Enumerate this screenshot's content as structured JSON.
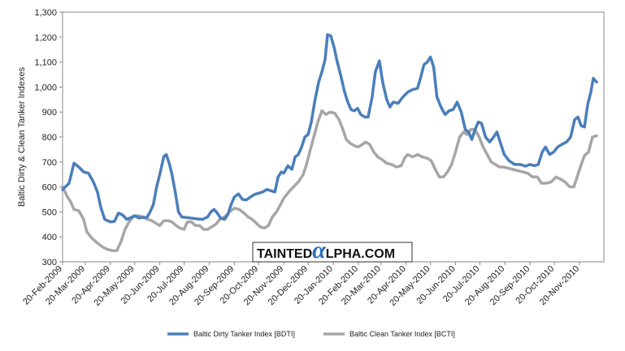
{
  "chart_data": {
    "type": "line",
    "title": "",
    "xlabel": "",
    "ylabel": "Baltic Dirty & Clean Tanker Indexes",
    "ylim": [
      300,
      1300
    ],
    "yticks": [
      300,
      400,
      500,
      600,
      700,
      800,
      900,
      1000,
      1100,
      1200,
      1300
    ],
    "ytick_labels": [
      "300",
      "400",
      "500",
      "600",
      "700",
      "800",
      "900",
      "1,000",
      "1,100",
      "1,200",
      "1,300"
    ],
    "x_start": "2009-02-20",
    "x_end": "2010-12-20",
    "xticks": [
      "2009-02-20",
      "2009-03-20",
      "2009-04-20",
      "2009-05-20",
      "2009-06-20",
      "2009-07-20",
      "2009-08-20",
      "2009-09-20",
      "2009-10-20",
      "2009-11-20",
      "2009-12-20",
      "2010-01-20",
      "2010-02-20",
      "2010-03-20",
      "2010-04-20",
      "2010-05-20",
      "2010-06-20",
      "2010-07-20",
      "2010-08-20",
      "2010-09-20",
      "2010-10-20",
      "2010-11-20"
    ],
    "xtick_labels": [
      "20-Feb-2009",
      "20-Mar-2009",
      "20-Apr-2009",
      "20-May-2009",
      "20-Jun-2009",
      "20-Jul-2009",
      "20-Aug-2009",
      "20-Sep-2009",
      "20-Oct-2009",
      "20-Nov-2009",
      "20-Dec-2009",
      "20-Jan-2010",
      "20-Feb-2010",
      "20-Mar-2010",
      "20-Apr-2010",
      "20-May-2010",
      "20-Jun-2010",
      "20-Jul-2010",
      "20-Aug-2010",
      "20-Sep-2010",
      "20-Oct-2010",
      "20-Nov-2010"
    ],
    "grid": false,
    "legend_position": "bottom",
    "series": [
      {
        "name": "Baltic Dirty Tanker Index [BDTI]",
        "color": "#4a7ebb",
        "points": [
          [
            "2009-02-20",
            590
          ],
          [
            "2009-02-28",
            615
          ],
          [
            "2009-03-06",
            695
          ],
          [
            "2009-03-12",
            680
          ],
          [
            "2009-03-18",
            660
          ],
          [
            "2009-03-24",
            655
          ],
          [
            "2009-03-30",
            620
          ],
          [
            "2009-04-04",
            580
          ],
          [
            "2009-04-08",
            520
          ],
          [
            "2009-04-13",
            470
          ],
          [
            "2009-04-20",
            460
          ],
          [
            "2009-04-25",
            462
          ],
          [
            "2009-04-30",
            495
          ],
          [
            "2009-05-05",
            488
          ],
          [
            "2009-05-10",
            470
          ],
          [
            "2009-05-16",
            478
          ],
          [
            "2009-05-20",
            485
          ],
          [
            "2009-05-25",
            476
          ],
          [
            "2009-05-30",
            478
          ],
          [
            "2009-06-04",
            478
          ],
          [
            "2009-06-08",
            500
          ],
          [
            "2009-06-12",
            530
          ],
          [
            "2009-06-16",
            600
          ],
          [
            "2009-06-20",
            650
          ],
          [
            "2009-06-25",
            722
          ],
          [
            "2009-06-28",
            730
          ],
          [
            "2009-07-02",
            690
          ],
          [
            "2009-07-05",
            650
          ],
          [
            "2009-07-09",
            580
          ],
          [
            "2009-07-13",
            500
          ],
          [
            "2009-07-17",
            480
          ],
          [
            "2009-07-22",
            478
          ],
          [
            "2009-07-29",
            475
          ],
          [
            "2009-08-05",
            472
          ],
          [
            "2009-08-12",
            470
          ],
          [
            "2009-08-18",
            480
          ],
          [
            "2009-08-22",
            500
          ],
          [
            "2009-08-26",
            510
          ],
          [
            "2009-08-30",
            495
          ],
          [
            "2009-09-03",
            475
          ],
          [
            "2009-09-08",
            470
          ],
          [
            "2009-09-12",
            490
          ],
          [
            "2009-09-16",
            530
          ],
          [
            "2009-09-20",
            560
          ],
          [
            "2009-09-25",
            572
          ],
          [
            "2009-09-30",
            550
          ],
          [
            "2009-10-05",
            548
          ],
          [
            "2009-10-10",
            560
          ],
          [
            "2009-10-15",
            570
          ],
          [
            "2009-10-20",
            575
          ],
          [
            "2009-10-25",
            580
          ],
          [
            "2009-10-30",
            590
          ],
          [
            "2009-11-04",
            585
          ],
          [
            "2009-11-09",
            580
          ],
          [
            "2009-11-13",
            640
          ],
          [
            "2009-11-17",
            660
          ],
          [
            "2009-11-20",
            655
          ],
          [
            "2009-11-25",
            685
          ],
          [
            "2009-11-30",
            670
          ],
          [
            "2009-12-04",
            720
          ],
          [
            "2009-12-08",
            730
          ],
          [
            "2009-12-12",
            760
          ],
          [
            "2009-12-16",
            800
          ],
          [
            "2009-12-20",
            810
          ],
          [
            "2009-12-24",
            860
          ],
          [
            "2009-12-28",
            940
          ],
          [
            "2010-01-02",
            1020
          ],
          [
            "2010-01-06",
            1060
          ],
          [
            "2010-01-10",
            1110
          ],
          [
            "2010-01-13",
            1210
          ],
          [
            "2010-01-17",
            1205
          ],
          [
            "2010-01-21",
            1160
          ],
          [
            "2010-01-25",
            1100
          ],
          [
            "2010-01-29",
            1050
          ],
          [
            "2010-02-03",
            980
          ],
          [
            "2010-02-07",
            940
          ],
          [
            "2010-02-11",
            910
          ],
          [
            "2010-02-15",
            905
          ],
          [
            "2010-02-19",
            915
          ],
          [
            "2010-02-23",
            890
          ],
          [
            "2010-02-28",
            880
          ],
          [
            "2010-03-04",
            880
          ],
          [
            "2010-03-09",
            960
          ],
          [
            "2010-03-13",
            1060
          ],
          [
            "2010-03-18",
            1105
          ],
          [
            "2010-03-22",
            1020
          ],
          [
            "2010-03-27",
            950
          ],
          [
            "2010-03-31",
            920
          ],
          [
            "2010-04-04",
            940
          ],
          [
            "2010-04-10",
            935
          ],
          [
            "2010-04-16",
            960
          ],
          [
            "2010-04-22",
            980
          ],
          [
            "2010-04-28",
            990
          ],
          [
            "2010-05-04",
            995
          ],
          [
            "2010-05-08",
            1040
          ],
          [
            "2010-05-12",
            1090
          ],
          [
            "2010-05-16",
            1100
          ],
          [
            "2010-05-20",
            1120
          ],
          [
            "2010-05-24",
            1080
          ],
          [
            "2010-05-28",
            960
          ],
          [
            "2010-06-02",
            920
          ],
          [
            "2010-06-07",
            890
          ],
          [
            "2010-06-12",
            905
          ],
          [
            "2010-06-17",
            910
          ],
          [
            "2010-06-22",
            940
          ],
          [
            "2010-06-27",
            900
          ],
          [
            "2010-07-02",
            830
          ],
          [
            "2010-07-06",
            820
          ],
          [
            "2010-07-10",
            790
          ],
          [
            "2010-07-14",
            830
          ],
          [
            "2010-07-18",
            860
          ],
          [
            "2010-07-22",
            855
          ],
          [
            "2010-07-27",
            800
          ],
          [
            "2010-08-01",
            780
          ],
          [
            "2010-08-06",
            800
          ],
          [
            "2010-08-10",
            820
          ],
          [
            "2010-08-14",
            780
          ],
          [
            "2010-08-19",
            730
          ],
          [
            "2010-08-25",
            705
          ],
          [
            "2010-09-01",
            690
          ],
          [
            "2010-09-08",
            690
          ],
          [
            "2010-09-14",
            683
          ],
          [
            "2010-09-20",
            690
          ],
          [
            "2010-09-25",
            685
          ],
          [
            "2010-09-30",
            690
          ],
          [
            "2010-10-05",
            740
          ],
          [
            "2010-10-09",
            760
          ],
          [
            "2010-10-14",
            730
          ],
          [
            "2010-10-19",
            740
          ],
          [
            "2010-10-24",
            760
          ],
          [
            "2010-10-29",
            770
          ],
          [
            "2010-11-04",
            780
          ],
          [
            "2010-11-09",
            800
          ],
          [
            "2010-11-14",
            870
          ],
          [
            "2010-11-18",
            880
          ],
          [
            "2010-11-22",
            845
          ],
          [
            "2010-11-26",
            840
          ],
          [
            "2010-11-30",
            930
          ],
          [
            "2010-12-04",
            980
          ],
          [
            "2010-12-07",
            1035
          ],
          [
            "2010-12-11",
            1020
          ]
        ]
      },
      {
        "name": "Baltic Clean Tanker Index [BCTI]",
        "color": "#a6a6a6",
        "points": [
          [
            "2009-02-20",
            600
          ],
          [
            "2009-02-26",
            560
          ],
          [
            "2009-03-02",
            540
          ],
          [
            "2009-03-06",
            510
          ],
          [
            "2009-03-12",
            505
          ],
          [
            "2009-03-18",
            470
          ],
          [
            "2009-03-22",
            420
          ],
          [
            "2009-03-28",
            395
          ],
          [
            "2009-04-04",
            375
          ],
          [
            "2009-04-10",
            360
          ],
          [
            "2009-04-16",
            350
          ],
          [
            "2009-04-22",
            345
          ],
          [
            "2009-04-28",
            345
          ],
          [
            "2009-05-03",
            380
          ],
          [
            "2009-05-08",
            430
          ],
          [
            "2009-05-13",
            460
          ],
          [
            "2009-05-18",
            480
          ],
          [
            "2009-05-24",
            485
          ],
          [
            "2009-05-30",
            480
          ],
          [
            "2009-06-05",
            470
          ],
          [
            "2009-06-10",
            465
          ],
          [
            "2009-06-15",
            455
          ],
          [
            "2009-06-20",
            445
          ],
          [
            "2009-06-25",
            465
          ],
          [
            "2009-06-30",
            465
          ],
          [
            "2009-07-05",
            460
          ],
          [
            "2009-07-10",
            445
          ],
          [
            "2009-07-15",
            435
          ],
          [
            "2009-07-20",
            430
          ],
          [
            "2009-07-24",
            460
          ],
          [
            "2009-07-29",
            460
          ],
          [
            "2009-08-03",
            445
          ],
          [
            "2009-08-08",
            445
          ],
          [
            "2009-08-13",
            430
          ],
          [
            "2009-08-18",
            430
          ],
          [
            "2009-08-23",
            440
          ],
          [
            "2009-08-28",
            450
          ],
          [
            "2009-09-02",
            470
          ],
          [
            "2009-09-08",
            480
          ],
          [
            "2009-09-14",
            500
          ],
          [
            "2009-09-20",
            515
          ],
          [
            "2009-09-26",
            510
          ],
          [
            "2009-10-02",
            495
          ],
          [
            "2009-10-07",
            480
          ],
          [
            "2009-10-12",
            470
          ],
          [
            "2009-10-17",
            455
          ],
          [
            "2009-10-22",
            440
          ],
          [
            "2009-10-27",
            435
          ],
          [
            "2009-11-01",
            445
          ],
          [
            "2009-11-06",
            480
          ],
          [
            "2009-11-11",
            500
          ],
          [
            "2009-11-16",
            530
          ],
          [
            "2009-11-20",
            555
          ],
          [
            "2009-11-26",
            580
          ],
          [
            "2009-12-02",
            600
          ],
          [
            "2009-12-08",
            620
          ],
          [
            "2009-12-14",
            650
          ],
          [
            "2009-12-18",
            690
          ],
          [
            "2009-12-22",
            740
          ],
          [
            "2009-12-27",
            800
          ],
          [
            "2010-01-01",
            860
          ],
          [
            "2010-01-06",
            905
          ],
          [
            "2010-01-11",
            890
          ],
          [
            "2010-01-16",
            900
          ],
          [
            "2010-01-22",
            895
          ],
          [
            "2010-01-27",
            870
          ],
          [
            "2010-02-01",
            830
          ],
          [
            "2010-02-05",
            790
          ],
          [
            "2010-02-10",
            775
          ],
          [
            "2010-02-15",
            765
          ],
          [
            "2010-02-20",
            760
          ],
          [
            "2010-02-25",
            770
          ],
          [
            "2010-03-01",
            780
          ],
          [
            "2010-03-06",
            770
          ],
          [
            "2010-03-11",
            740
          ],
          [
            "2010-03-16",
            720
          ],
          [
            "2010-03-21",
            710
          ],
          [
            "2010-03-27",
            695
          ],
          [
            "2010-04-02",
            690
          ],
          [
            "2010-04-08",
            680
          ],
          [
            "2010-04-14",
            685
          ],
          [
            "2010-04-18",
            715
          ],
          [
            "2010-04-22",
            730
          ],
          [
            "2010-04-28",
            720
          ],
          [
            "2010-05-04",
            730
          ],
          [
            "2010-05-10",
            720
          ],
          [
            "2010-05-16",
            715
          ],
          [
            "2010-05-21",
            705
          ],
          [
            "2010-05-26",
            670
          ],
          [
            "2010-05-31",
            640
          ],
          [
            "2010-06-05",
            640
          ],
          [
            "2010-06-10",
            660
          ],
          [
            "2010-06-15",
            690
          ],
          [
            "2010-06-20",
            740
          ],
          [
            "2010-06-25",
            800
          ],
          [
            "2010-06-30",
            820
          ],
          [
            "2010-07-04",
            810
          ],
          [
            "2010-07-09",
            830
          ],
          [
            "2010-07-14",
            830
          ],
          [
            "2010-07-19",
            800
          ],
          [
            "2010-07-24",
            760
          ],
          [
            "2010-07-29",
            730
          ],
          [
            "2010-08-03",
            700
          ],
          [
            "2010-08-08",
            690
          ],
          [
            "2010-08-13",
            680
          ],
          [
            "2010-08-18",
            680
          ],
          [
            "2010-08-24",
            675
          ],
          [
            "2010-08-30",
            670
          ],
          [
            "2010-09-05",
            665
          ],
          [
            "2010-09-11",
            660
          ],
          [
            "2010-09-17",
            655
          ],
          [
            "2010-09-23",
            640
          ],
          [
            "2010-09-29",
            640
          ],
          [
            "2010-10-04",
            615
          ],
          [
            "2010-10-10",
            615
          ],
          [
            "2010-10-16",
            620
          ],
          [
            "2010-10-22",
            640
          ],
          [
            "2010-10-28",
            630
          ],
          [
            "2010-11-02",
            620
          ],
          [
            "2010-11-08",
            600
          ],
          [
            "2010-11-13",
            600
          ],
          [
            "2010-11-17",
            640
          ],
          [
            "2010-11-22",
            690
          ],
          [
            "2010-11-26",
            725
          ],
          [
            "2010-12-01",
            740
          ],
          [
            "2010-12-06",
            800
          ],
          [
            "2010-12-11",
            805
          ]
        ]
      }
    ]
  },
  "watermark": {
    "part1": "TAINTED",
    "glyph": "α",
    "part2": "LPHA.COM"
  }
}
